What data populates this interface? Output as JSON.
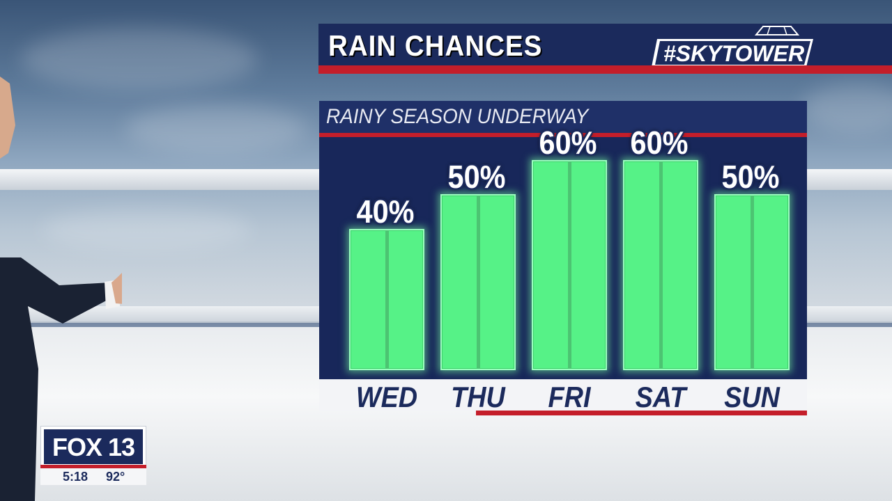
{
  "header": {
    "title": "RAIN CHANCES",
    "brand_text": "#SKYTOWER"
  },
  "panel": {
    "subtitle": "RAINY SEASON UNDERWAY"
  },
  "station": {
    "logo": "FOX 13",
    "time": "5:18",
    "temperature": "92°"
  },
  "colors": {
    "navy": "#1b2a5c",
    "red": "#c41e2a",
    "bar_green": "#56f287"
  },
  "chart_data": {
    "type": "bar",
    "title": "RAIN CHANCES",
    "subtitle": "RAINY SEASON UNDERWAY",
    "categories": [
      "WED",
      "THU",
      "FRI",
      "SAT",
      "SUN"
    ],
    "values": [
      40,
      50,
      60,
      60,
      50
    ],
    "value_labels": [
      "40%",
      "50%",
      "60%",
      "60%",
      "50%"
    ],
    "unit": "%",
    "ylim": [
      0,
      100
    ],
    "grid": false,
    "legend": "none"
  }
}
